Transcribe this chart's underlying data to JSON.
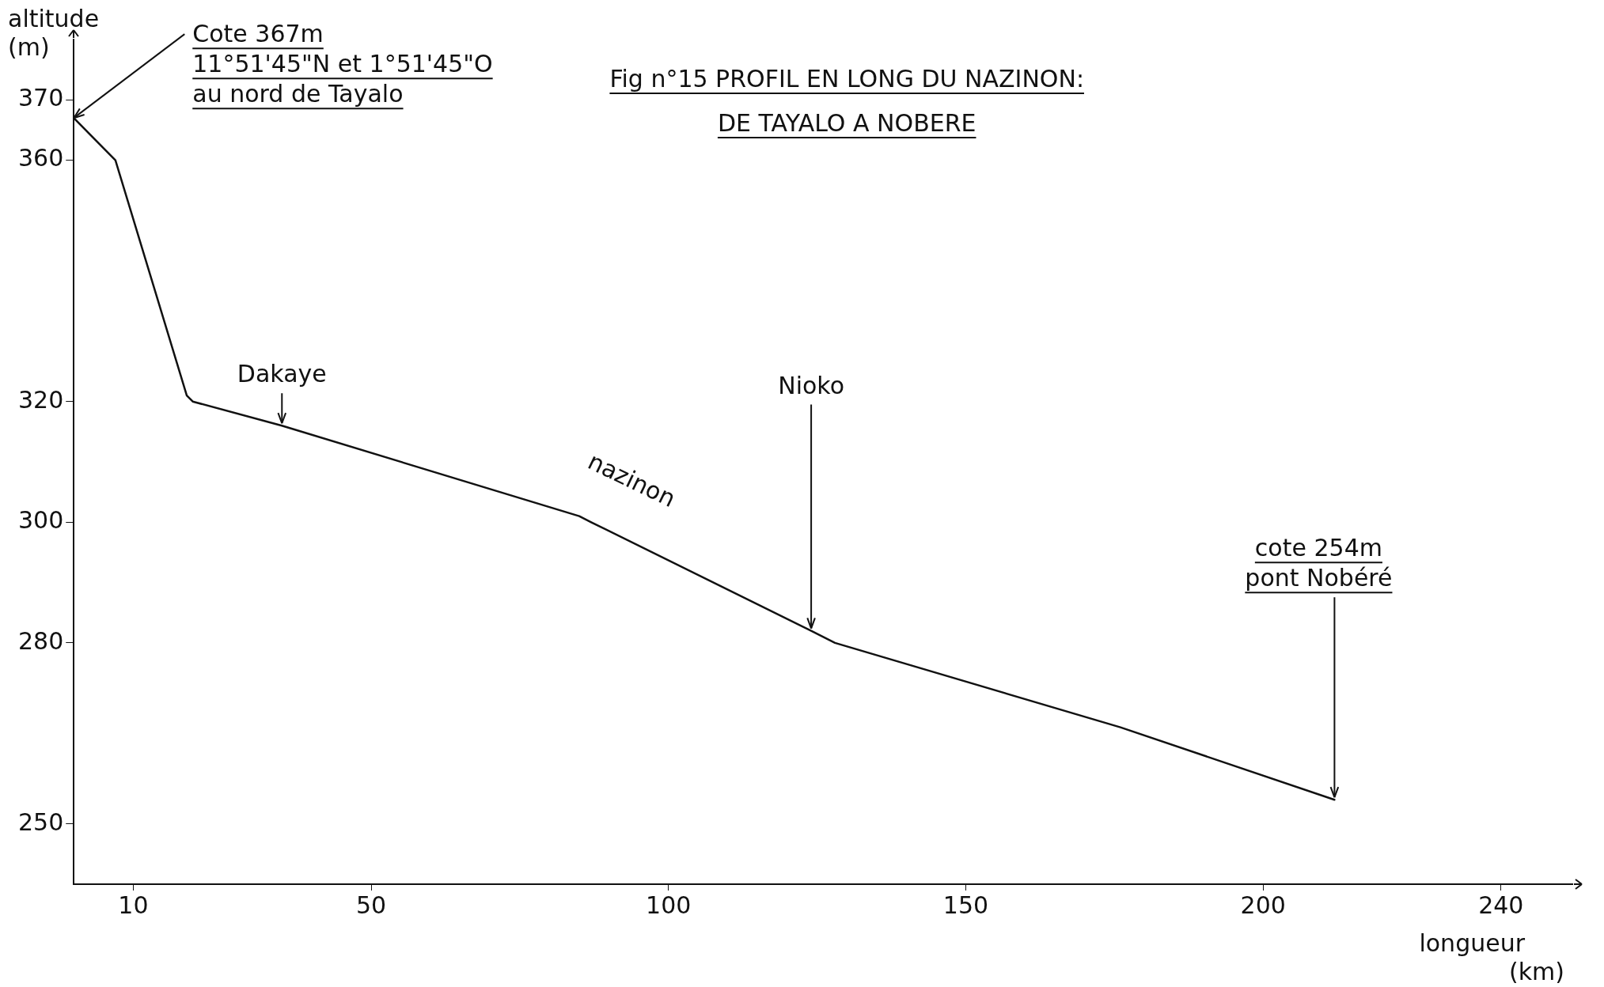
{
  "chart_data": {
    "type": "line",
    "title": "Fig n°15 PROFIL EN LONG DU NAZINON:\nDE TAYALO A NOBERE",
    "xlabel": "longueur\n(km)",
    "ylabel": "altitude\n(m)",
    "x": [
      0,
      5,
      7,
      19,
      20,
      35,
      85,
      87,
      124,
      128,
      176,
      212
    ],
    "series": [
      {
        "color": "#111111",
        "values": [
          367,
          362,
          360,
          321,
          320,
          316,
          301,
          300,
          282,
          280,
          266,
          254
        ]
      }
    ],
    "xlim": [
      0,
      252
    ],
    "ylim": [
      240,
      380
    ],
    "xticks": [
      10,
      50,
      100,
      150,
      200,
      240
    ],
    "yticks": [
      250,
      280,
      300,
      320,
      360,
      370
    ],
    "grid": false,
    "legend": false,
    "marker": "none",
    "line_style": "solid",
    "annotations": [
      {
        "text": "Cote 367m\n11°51'45\"N et 1°51'45\"O\nau nord de Tayalo",
        "x": 0,
        "y": 367
      },
      {
        "text": "Dakaye",
        "x": 35,
        "y": 316
      },
      {
        "text": "Nioko",
        "x": 124,
        "y": 282
      },
      {
        "text": "cote 254m\npont Nobéré",
        "x": 212,
        "y": 254
      },
      "nazinon"
    ]
  }
}
